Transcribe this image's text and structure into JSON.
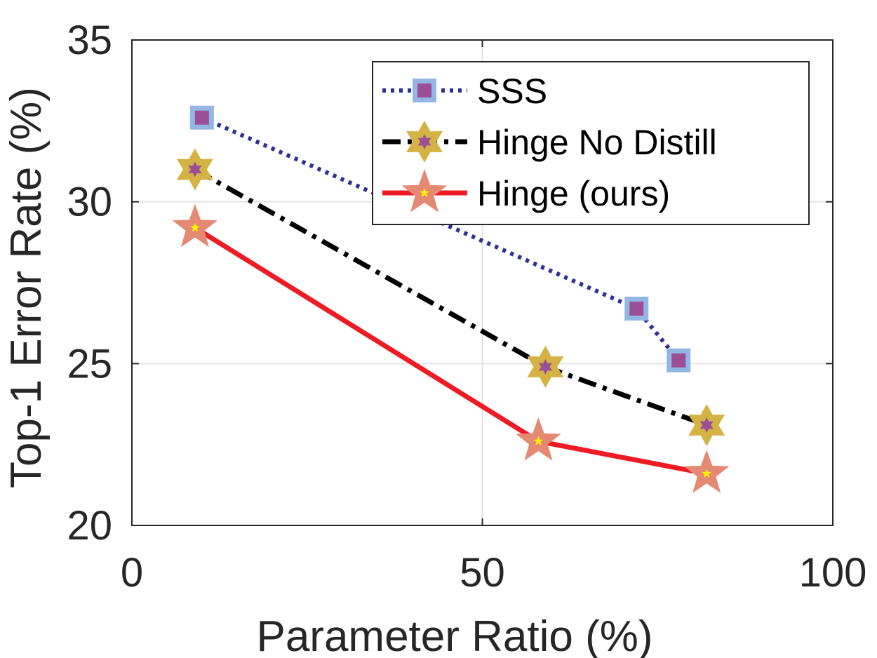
{
  "chart_data": {
    "type": "line",
    "xlabel": "Parameter Ratio (%)",
    "ylabel": "Top-1 Error Rate (%)",
    "xlim": [
      0,
      100
    ],
    "ylim": [
      20,
      35
    ],
    "xticks": [
      "0",
      "50",
      "100"
    ],
    "yticks": [
      "20",
      "25",
      "30",
      "35"
    ],
    "grid": true,
    "legend_position": "top-right",
    "series": [
      {
        "name": "SSS",
        "line_style": "dotted",
        "line_color": "#2e3192",
        "marker": "square",
        "marker_edge_color": "#92b7e2",
        "marker_face_color": "#9b4f96",
        "x": [
          10,
          72,
          78
        ],
        "y": [
          32.6,
          26.7,
          25.1
        ]
      },
      {
        "name": "Hinge No Distill",
        "line_style": "dashdot",
        "line_color": "#000000",
        "marker": "hexagram",
        "marker_edge_color": "#d4b243",
        "marker_face_color": "#9b4f96",
        "x": [
          9,
          59,
          82
        ],
        "y": [
          31.0,
          24.9,
          23.1
        ]
      },
      {
        "name": "Hinge (ours)",
        "line_style": "solid",
        "line_color": "#ed1c24",
        "marker": "pentagram",
        "marker_edge_color": "#e48a72",
        "marker_face_color": "#fff200",
        "x": [
          9,
          58,
          82
        ],
        "y": [
          29.2,
          22.6,
          21.6
        ]
      }
    ]
  }
}
